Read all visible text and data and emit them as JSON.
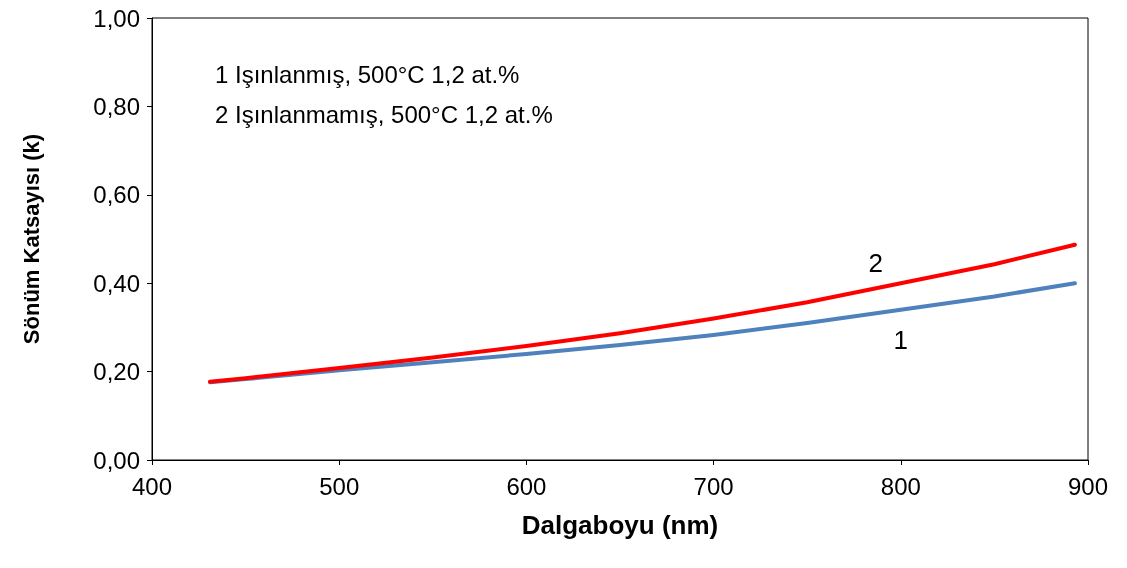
{
  "chart_data": {
    "type": "line",
    "xlabel": "Dalgaboyu (nm)",
    "ylabel": "Sönüm Katsayısı (k)",
    "x": [
      431,
      450,
      500,
      550,
      600,
      650,
      700,
      750,
      800,
      850,
      893
    ],
    "series": [
      {
        "name": "1",
        "color": "#4f81bd",
        "values": [
          0.176,
          0.183,
          0.203,
          0.221,
          0.24,
          0.26,
          0.283,
          0.31,
          0.34,
          0.37,
          0.4
        ]
      },
      {
        "name": "2",
        "color": "#ff0000",
        "values": [
          0.177,
          0.185,
          0.208,
          0.232,
          0.258,
          0.287,
          0.32,
          0.357,
          0.4,
          0.443,
          0.487
        ]
      }
    ],
    "xlim": [
      400,
      900
    ],
    "xticks": [
      400,
      500,
      600,
      700,
      800,
      900
    ],
    "ylim": [
      0,
      1
    ],
    "yticks": [
      {
        "value": 0,
        "label": "0,00"
      },
      {
        "value": 0.2,
        "label": "0,20"
      },
      {
        "value": 0.4,
        "label": "0,40"
      },
      {
        "value": 0.6,
        "label": "0,60"
      },
      {
        "value": 0.8,
        "label": "0,80"
      },
      {
        "value": 1,
        "label": "1,00"
      }
    ],
    "grid": false,
    "marker": "none",
    "line_style": "solid",
    "annotations": [
      "1 Işınlanmış, 500°C 1,2 at.%",
      "2 Işınlanmamış, 500°C 1,2 at.%"
    ]
  }
}
